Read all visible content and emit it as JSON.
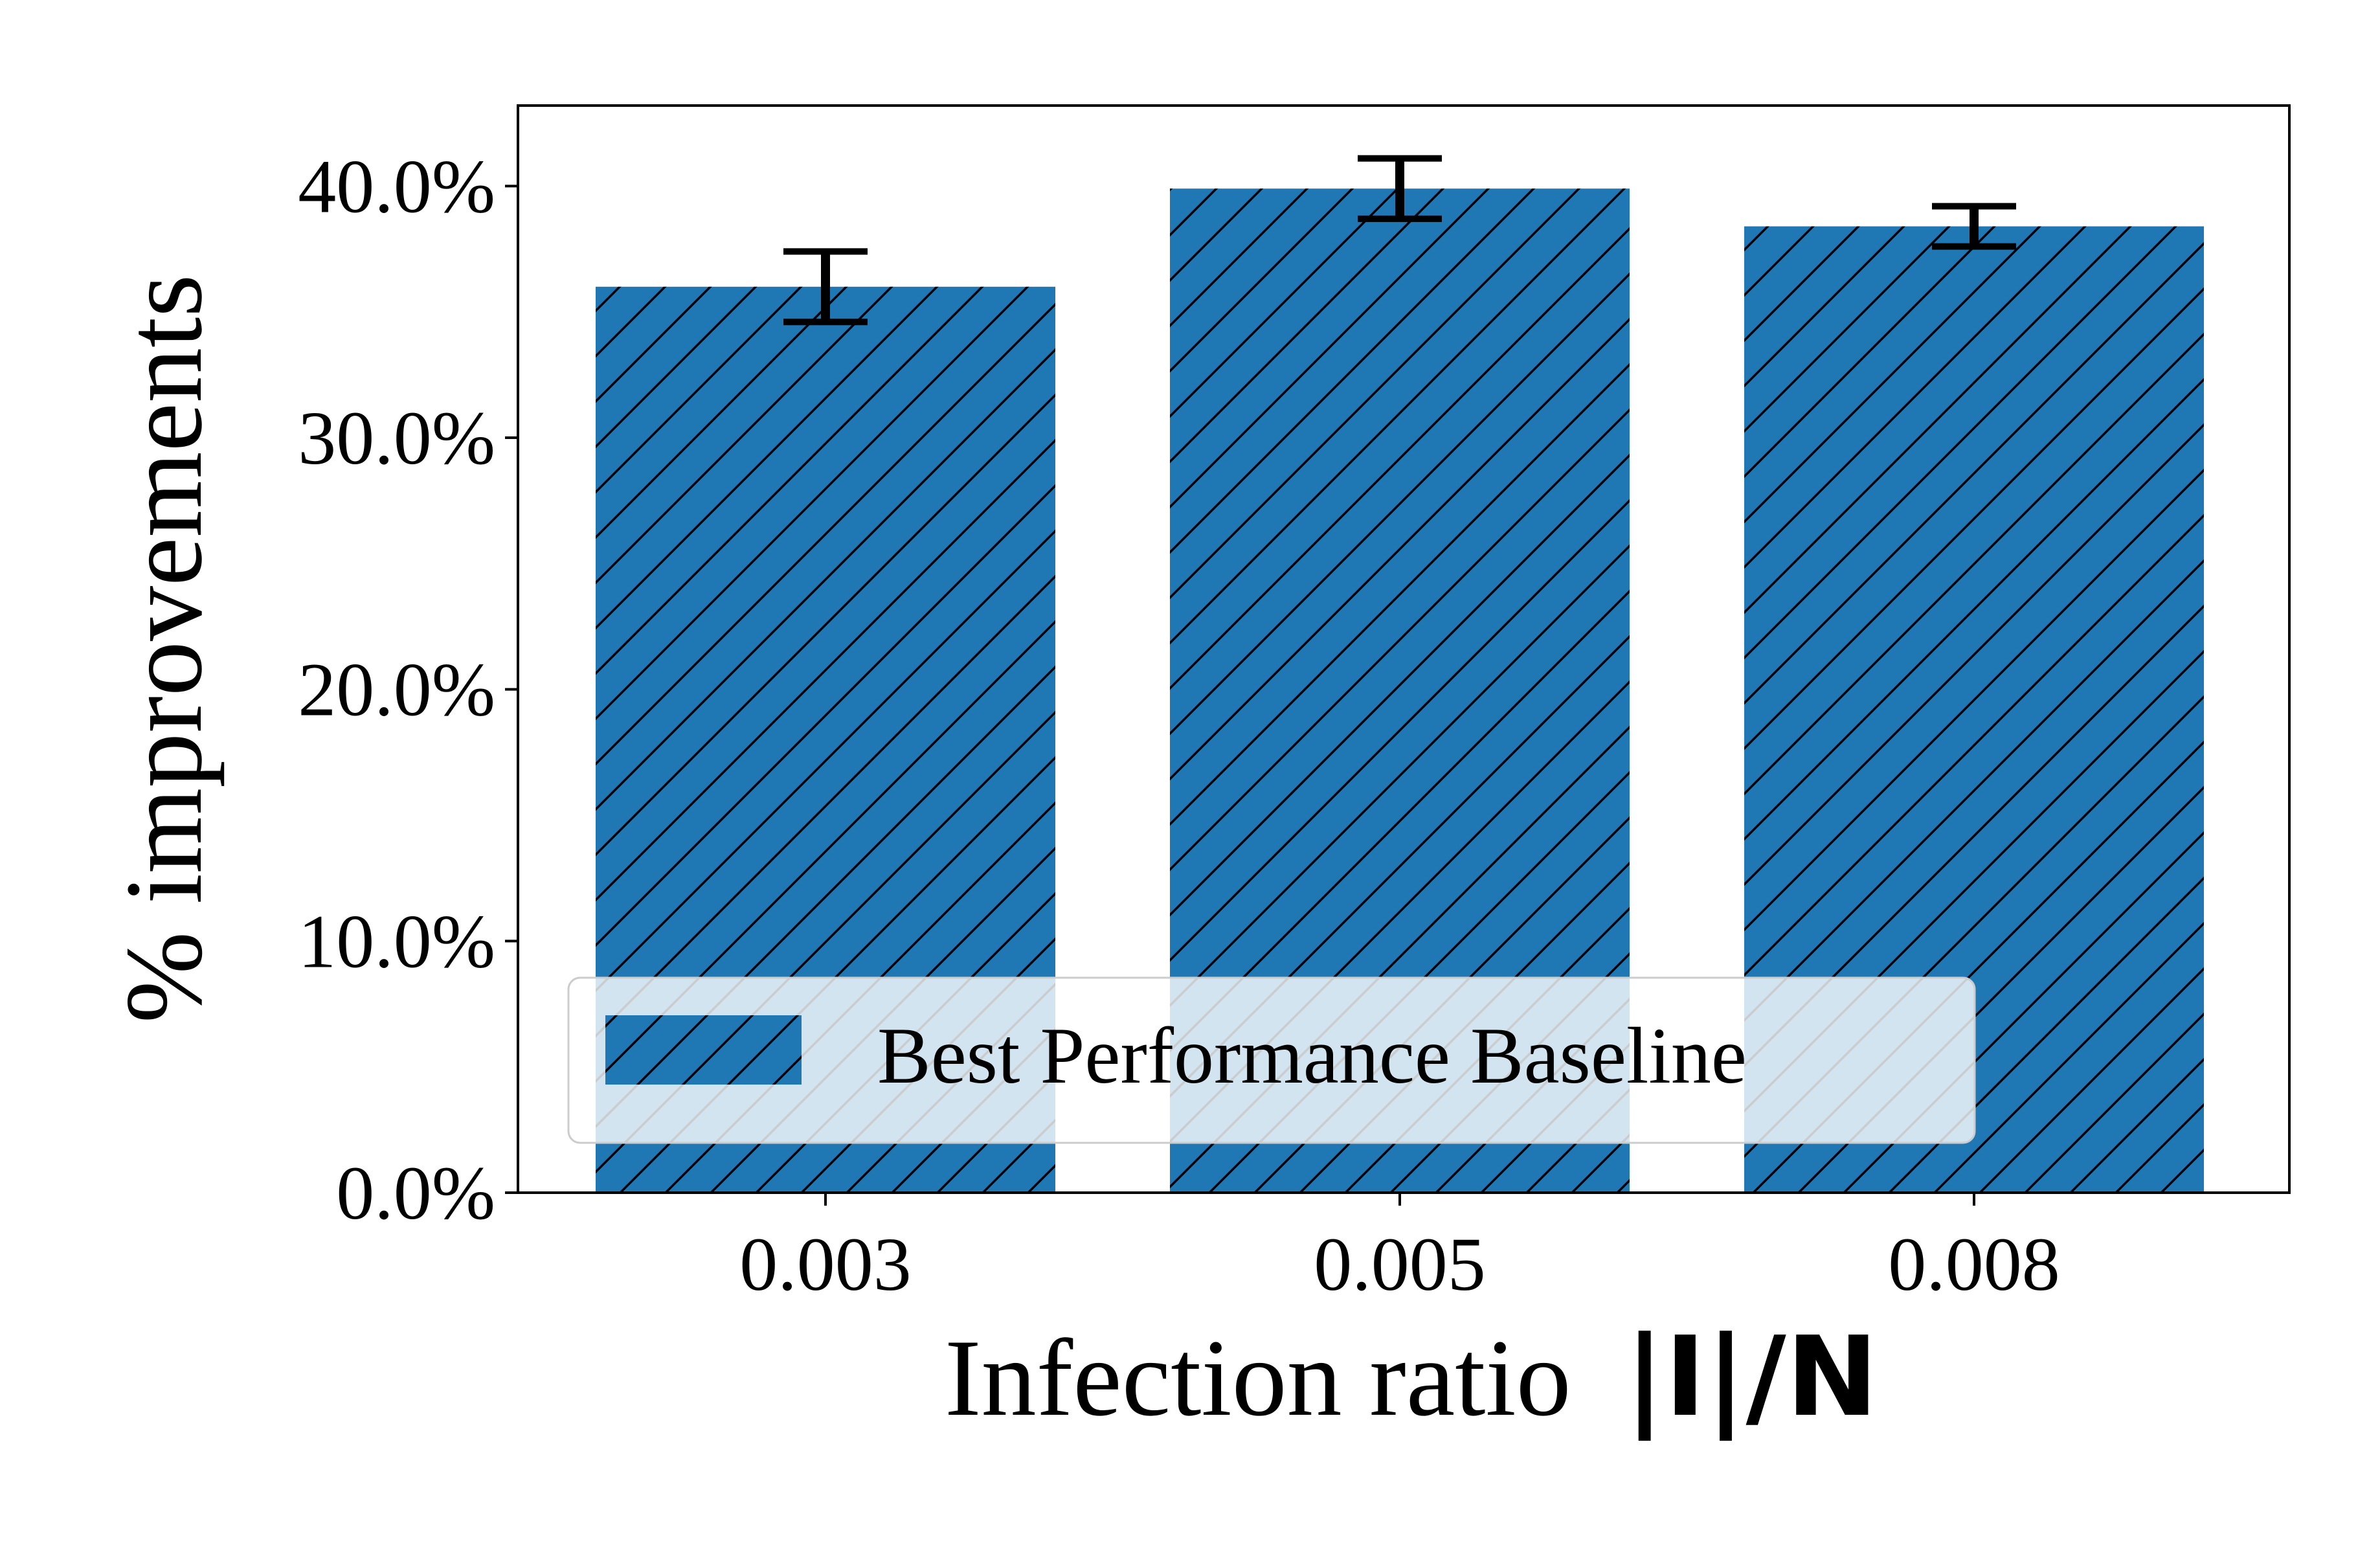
{
  "chart_data": {
    "type": "bar",
    "categories": [
      "0.003",
      "0.005",
      "0.008"
    ],
    "series": [
      {
        "name": "Best Performance Baseline",
        "values": [
          36.0,
          39.9,
          38.4
        ],
        "error": [
          1.4,
          1.2,
          0.8
        ],
        "color": "#1f77b4",
        "hatch": "diagonal"
      }
    ],
    "y_ticks": [
      "0.0%",
      "10.0%",
      "20.0%",
      "30.0%",
      "40.0%"
    ],
    "y_tick_values": [
      0,
      10,
      20,
      30,
      40
    ],
    "xlabel_text": "Infection ratio",
    "xlabel_math": "|I|/N",
    "ylabel": "% improvements",
    "ylim": [
      0,
      43.2
    ],
    "grid": false,
    "legend_position": "lower-center"
  }
}
